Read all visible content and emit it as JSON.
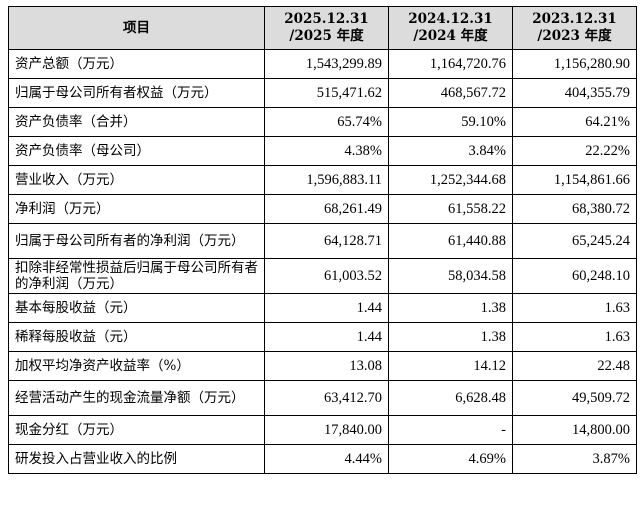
{
  "header": {
    "item": "项目",
    "years": [
      {
        "date": "2025.12.31",
        "year": "/2025 年度"
      },
      {
        "date": "2024.12.31",
        "year": "/2024 年度"
      },
      {
        "date": "2023.12.31",
        "year": "/2023 年度"
      }
    ]
  },
  "rows": [
    {
      "label": "资产总额（万元）",
      "values": [
        "1,543,299.89",
        "1,164,720.76",
        "1,156,280.90"
      ]
    },
    {
      "label": "归属于母公司所有者权益（万元）",
      "values": [
        "515,471.62",
        "468,567.72",
        "404,355.79"
      ]
    },
    {
      "label": "资产负债率（合并）",
      "values": [
        "65.74%",
        "59.10%",
        "64.21%"
      ]
    },
    {
      "label": "资产负债率（母公司）",
      "values": [
        "4.38%",
        "3.84%",
        "22.22%"
      ]
    },
    {
      "label": "营业收入（万元）",
      "values": [
        "1,596,883.11",
        "1,252,344.68",
        "1,154,861.66"
      ]
    },
    {
      "label": "净利润（万元）",
      "values": [
        "68,261.49",
        "61,558.22",
        "68,380.72"
      ]
    },
    {
      "label": "归属于母公司所有者的净利润（万元）",
      "values": [
        "64,128.71",
        "61,440.88",
        "65,245.24"
      ]
    },
    {
      "label": "扣除非经常性损益后归属于母公司所有者的净利润（万元）",
      "values": [
        "61,003.52",
        "58,034.58",
        "60,248.10"
      ]
    },
    {
      "label": "基本每股收益（元）",
      "values": [
        "1.44",
        "1.38",
        "1.63"
      ]
    },
    {
      "label": "稀释每股收益（元）",
      "values": [
        "1.44",
        "1.38",
        "1.63"
      ]
    },
    {
      "label": "加权平均净资产收益率（%）",
      "values": [
        "13.08",
        "14.12",
        "22.48"
      ]
    },
    {
      "label": "经营活动产生的现金流量净额（万元）",
      "values": [
        "63,412.70",
        "6,628.48",
        "49,509.72"
      ]
    },
    {
      "label": "现金分红（万元）",
      "values": [
        "17,840.00",
        "-",
        "14,800.00"
      ]
    },
    {
      "label": "研发投入占营业收入的比例",
      "values": [
        "4.44%",
        "4.69%",
        "3.87%"
      ]
    }
  ]
}
